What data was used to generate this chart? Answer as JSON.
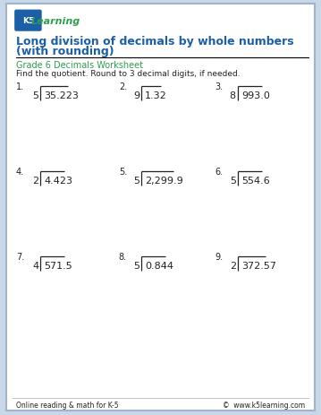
{
  "title_line1": "Long division of decimals by whole numbers",
  "title_line2": "(with rounding)",
  "subtitle": "Grade 6 Decimals Worksheet",
  "instruction": "Find the quotient. Round to 3 decimal digits, if needed.",
  "problems": [
    {
      "num": "1.",
      "divisor": "5",
      "dividend": "35.223"
    },
    {
      "num": "2.",
      "divisor": "9",
      "dividend": "1.32"
    },
    {
      "num": "3.",
      "divisor": "8",
      "dividend": "993.0"
    },
    {
      "num": "4.",
      "divisor": "2",
      "dividend": "4.423"
    },
    {
      "num": "5.",
      "divisor": "5",
      "dividend": "2,299.9"
    },
    {
      "num": "6.",
      "divisor": "5",
      "dividend": "554.6"
    },
    {
      "num": "7.",
      "divisor": "4",
      "dividend": "571.5"
    },
    {
      "num": "8.",
      "divisor": "5",
      "dividend": "0.844"
    },
    {
      "num": "9.",
      "divisor": "2",
      "dividend": "372.57"
    }
  ],
  "footer_left": "Online reading & math for K-5",
  "footer_right": "©  www.k5learning.com",
  "title_color": "#1a5fa8",
  "subtitle_color": "#2e9e4f",
  "border_color": "#a0b4cc",
  "text_color": "#222222",
  "background_color": "#ffffff",
  "page_bg": "#c8d8e8"
}
